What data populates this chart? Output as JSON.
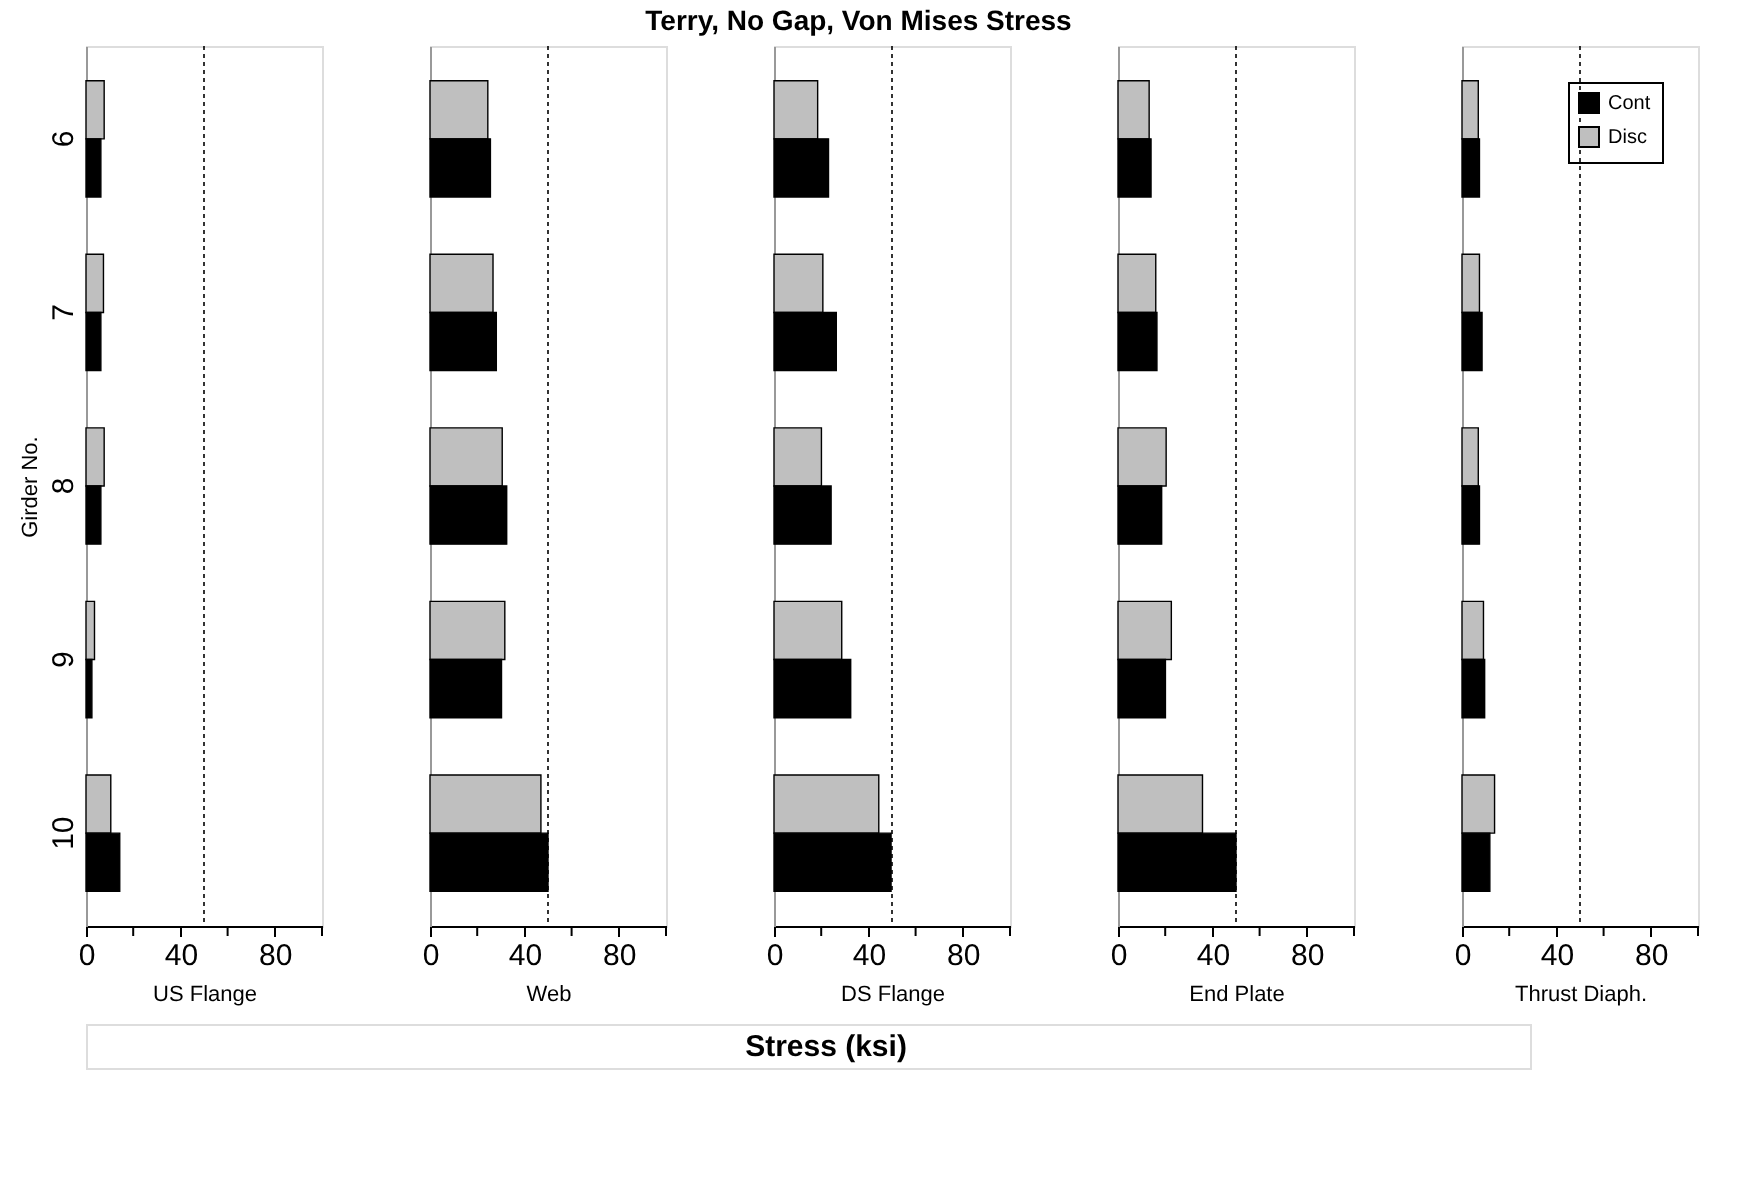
{
  "chart_data": [
    {
      "type": "bar",
      "orientation": "horizontal",
      "ylabel": "Girder No.",
      "xlabel": "US Flange",
      "categories": [
        "6",
        "7",
        "8",
        "9",
        "10"
      ],
      "series": [
        {
          "color": "#bfbfbf",
          "values": [
            7.7,
            7.4,
            7.7,
            3.6,
            10.5
          ]
        },
        {
          "color": "#000000",
          "values": [
            6.3,
            6.3,
            6.3,
            2.5,
            14.3
          ]
        }
      ],
      "xlim": [
        0,
        100
      ],
      "xticks": [
        0,
        {
          "value": 20,
          "label": null
        },
        40,
        {
          "value": 60,
          "label": null
        },
        80,
        {
          "value": 100,
          "label": null
        }
      ],
      "ref_lines": [
        {
          "axis": "x",
          "value": 50,
          "line_style": "dotted",
          "color": "#000000"
        }
      ],
      "grid": false,
      "legend": false
    },
    {
      "type": "bar",
      "orientation": "horizontal",
      "xlabel": "Web",
      "categories": [
        "6",
        "7",
        "8",
        "9",
        "10"
      ],
      "tick_labels": "x",
      "series": [
        {
          "color": "#bfbfbf",
          "values": [
            24.5,
            26.7,
            30.6,
            31.7,
            47
          ]
        },
        {
          "color": "#000000",
          "values": [
            25.6,
            28.1,
            32.5,
            30.3,
            50
          ]
        }
      ],
      "xlim": [
        0,
        100
      ],
      "xticks": [
        0,
        {
          "value": 20,
          "label": null
        },
        40,
        {
          "value": 60,
          "label": null
        },
        80,
        {
          "value": 100,
          "label": null
        }
      ],
      "ref_lines": [
        {
          "axis": "x",
          "value": 50,
          "line_style": "dotted",
          "color": "#000000"
        }
      ],
      "grid": false,
      "legend": false
    },
    {
      "type": "bar",
      "orientation": "horizontal",
      "title": "Terry, No Gap, Von Mises Stress",
      "xlabel": "DS Flange",
      "categories": [
        "6",
        "7",
        "8",
        "9",
        "10"
      ],
      "tick_labels": "x",
      "annotations": [
        "Stress (ksi)"
      ],
      "series": [
        {
          "color": "#bfbfbf",
          "values": [
            18.5,
            20.7,
            20.1,
            28.7,
            44.4
          ]
        },
        {
          "color": "#000000",
          "values": [
            23.1,
            26.4,
            24.2,
            32.5,
            49.6
          ]
        }
      ],
      "xlim": [
        0,
        100
      ],
      "xticks": [
        0,
        {
          "value": 20,
          "label": null
        },
        40,
        {
          "value": 60,
          "label": null
        },
        80,
        {
          "value": 100,
          "label": null
        }
      ],
      "ref_lines": [
        {
          "axis": "x",
          "value": 50,
          "line_style": "dotted",
          "color": "#000000"
        }
      ],
      "grid": false,
      "legend": false
    },
    {
      "type": "bar",
      "orientation": "horizontal",
      "xlabel": "End Plate",
      "categories": [
        "6",
        "7",
        "8",
        "9",
        "10"
      ],
      "tick_labels": "x",
      "series": [
        {
          "color": "#bfbfbf",
          "values": [
            13.2,
            16,
            20.4,
            22.6,
            35.8
          ]
        },
        {
          "color": "#000000",
          "values": [
            14,
            16.5,
            18.5,
            20.1,
            50
          ]
        }
      ],
      "xlim": [
        0,
        100
      ],
      "xticks": [
        0,
        {
          "value": 20,
          "label": null
        },
        40,
        {
          "value": 60,
          "label": null
        },
        80,
        {
          "value": 100,
          "label": null
        }
      ],
      "ref_lines": [
        {
          "axis": "x",
          "value": 50,
          "line_style": "dotted",
          "color": "#000000"
        }
      ],
      "grid": false,
      "legend": false
    },
    {
      "type": "bar",
      "orientation": "horizontal",
      "xlabel": "Thrust Diaph.",
      "categories": [
        "6",
        "7",
        "8",
        "9",
        "10"
      ],
      "tick_labels": "x",
      "series": [
        {
          "name": "Disc",
          "color": "#bfbfbf",
          "values": [
            6.9,
            7.4,
            6.9,
            9.1,
            13.8
          ]
        },
        {
          "name": "Cont",
          "color": "#000000",
          "values": [
            7.4,
            8.5,
            7.4,
            9.6,
            11.8
          ]
        }
      ],
      "xlim": [
        0,
        100
      ],
      "xticks": [
        0,
        {
          "value": 20,
          "label": null
        },
        40,
        {
          "value": 60,
          "label": null
        },
        80,
        {
          "value": 100,
          "label": null
        }
      ],
      "ref_lines": [
        {
          "axis": "x",
          "value": 50,
          "line_style": "dotted",
          "color": "#000000"
        }
      ],
      "grid": false,
      "legend": "top right"
    }
  ]
}
